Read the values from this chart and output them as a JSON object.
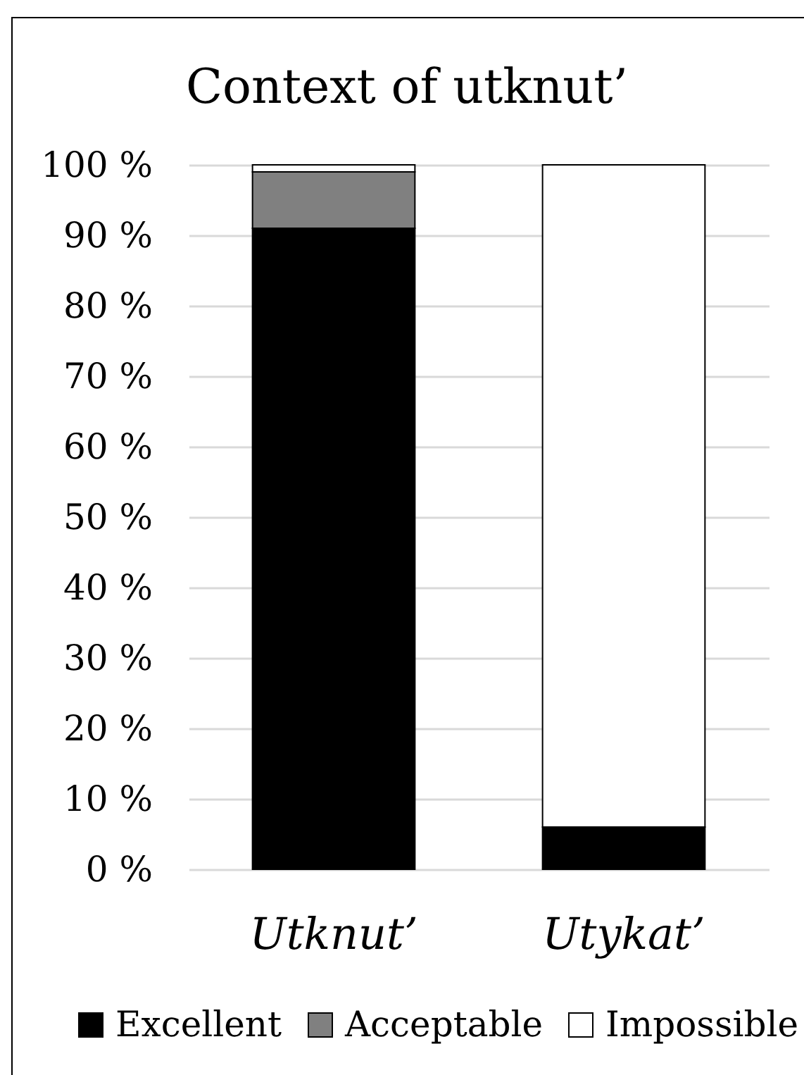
{
  "chart_data": {
    "type": "bar",
    "title": "Context of utknut’",
    "categories": [
      "Utknut’",
      "Utykat’"
    ],
    "series": [
      {
        "name": "Excellent",
        "color": "#000000",
        "values": [
          91,
          6
        ]
      },
      {
        "name": "Acceptable",
        "color": "#808080",
        "values": [
          8,
          0
        ]
      },
      {
        "name": "Impossible",
        "color": "#ffffff",
        "values": [
          1,
          94
        ]
      }
    ],
    "stacked": true,
    "ylim": [
      0,
      100
    ],
    "yticks": [
      {
        "value": 0,
        "label": "0 %"
      },
      {
        "value": 10,
        "label": "10 %"
      },
      {
        "value": 20,
        "label": "20 %"
      },
      {
        "value": 30,
        "label": "30 %"
      },
      {
        "value": 40,
        "label": "40 %"
      },
      {
        "value": 50,
        "label": "50 %"
      },
      {
        "value": 60,
        "label": "60 %"
      },
      {
        "value": 70,
        "label": "70 %"
      },
      {
        "value": 80,
        "label": "80 %"
      },
      {
        "value": 90,
        "label": "90 %"
      },
      {
        "value": 100,
        "label": "100 %"
      }
    ],
    "grid": "y",
    "legend": "bottom"
  }
}
